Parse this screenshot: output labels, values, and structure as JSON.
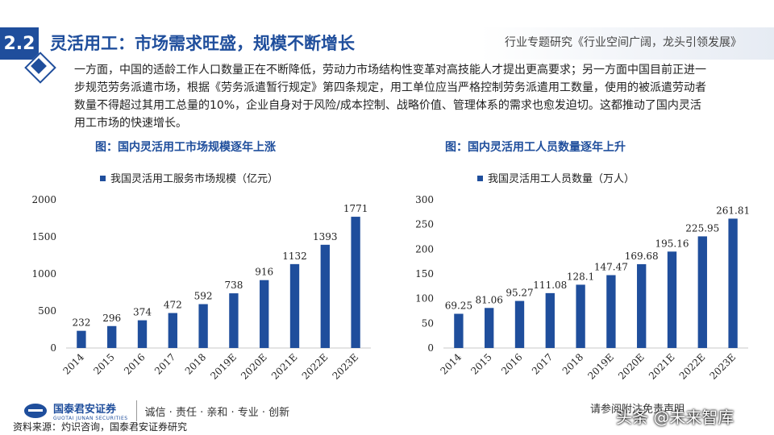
{
  "header": {
    "section": "2.2",
    "title": "灵活用工：市场需求旺盛，规模不断增长",
    "subtitle": "行业专题研究《行业空间广阔，龙头引领发展》"
  },
  "intro": "一方面，中国的适龄工作人口数量正在不断降低，劳动力市场结构性变革对高技能人才提出更高要求；另一方面中国目前正进一步规范劳务派遣市场，根据《劳务派遣暂行规定》第四条规定，用工单位应当严格控制劳务派遣用工数量，使用的被派遣劳动者数量不得超过其用工总量的10%，企业自身对于风险/成本控制、战略价值、管理体系的需求也愈发迫切。这都推动了国内灵活用工市场的快速增长。",
  "chart_data": [
    {
      "type": "bar",
      "title": "图：国内灵活用工市场规模逐年上涨",
      "categories": [
        "2014",
        "2015",
        "2016",
        "2017",
        "2018",
        "2019E",
        "2020E",
        "2021E",
        "2022E",
        "2023E"
      ],
      "series": [
        {
          "name": "我国灵活用工服务市场规模（亿元）",
          "values": [
            232,
            296,
            374,
            472,
            592,
            738,
            916,
            1132,
            1393,
            1771
          ]
        }
      ],
      "value_labels": [
        "232",
        "296",
        "374",
        "472",
        "592",
        "738",
        "916",
        "1132",
        "1393",
        "1771"
      ],
      "y_ticks": [
        "0",
        "500",
        "1000",
        "1500",
        "2000"
      ],
      "ylim": [
        0,
        2000
      ],
      "color": "#1f4e9c",
      "legend": "top-left",
      "grid": false
    },
    {
      "type": "bar",
      "title": "图：国内灵活用工人员数量逐年上升",
      "categories": [
        "2014",
        "2015",
        "2016",
        "2017",
        "2018",
        "2019E",
        "2020E",
        "2021E",
        "2022E",
        "2023E"
      ],
      "series": [
        {
          "name": "我国灵活用工人员数量（万人）",
          "values": [
            69.25,
            81.06,
            95.27,
            111.08,
            128.1,
            147.47,
            169.68,
            195.16,
            225.95,
            261.81
          ]
        }
      ],
      "value_labels": [
        "69.25",
        "81.06",
        "95.27",
        "111.08",
        "128.1",
        "147.47",
        "169.68",
        "195.16",
        "225.95",
        "261.81"
      ],
      "y_ticks": [
        "0",
        "50",
        "100",
        "150",
        "200",
        "250",
        "300"
      ],
      "ylim": [
        0,
        300
      ],
      "color": "#1f4e9c",
      "legend": "top-left",
      "grid": false
    }
  ],
  "footer": {
    "logo_cn": "国泰君安证券",
    "logo_en": "GUOTAI JUNAN SECURITIES",
    "slogan": "诚信 · 责任 · 亲和 · 专业 · 创新",
    "source": "资料来源：灼识咨询，国泰君安证券研究",
    "disclaimer": "请参阅附注免责声明",
    "watermark": "头条 @未来智库"
  }
}
